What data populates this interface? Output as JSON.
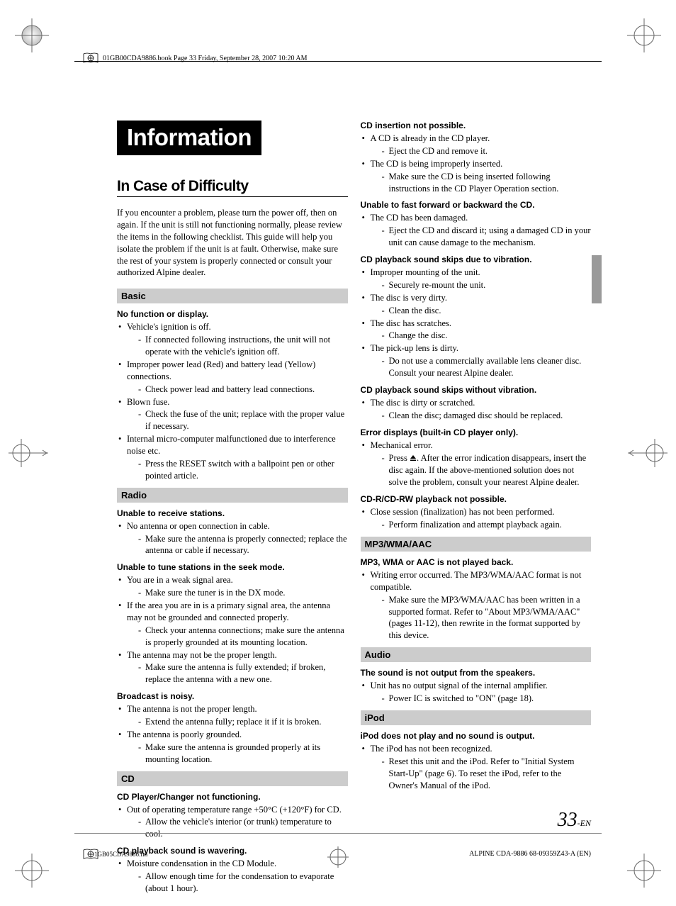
{
  "crop_mark_color": "#5a5a5a",
  "header": {
    "running_head": "01GB00CDA9886.book  Page 33  Friday, September 28, 2007  10:20 AM"
  },
  "title": "Information",
  "subtitle": "In Case of Difficulty",
  "intro": "If you encounter a problem, please turn the power off, then on again. If the unit is still not functioning normally, please review the items in the following checklist. This guide will help you isolate the problem if the unit is at fault. Otherwise, make sure the rest of your system is properly connected or consult your authorized Alpine dealer.",
  "sections_left": [
    {
      "heading": "Basic",
      "problems": [
        {
          "title": "No function or display.",
          "causes": [
            {
              "text": "Vehicle's ignition is off.",
              "solution": "If connected following instructions, the unit will not operate with the vehicle's ignition off."
            },
            {
              "text": "Improper power lead (Red) and battery lead (Yellow) connections.",
              "solution": "Check power lead and battery lead connections."
            },
            {
              "text": "Blown fuse.",
              "solution": "Check the fuse of the unit; replace with the proper value if necessary."
            },
            {
              "text": "Internal micro-computer malfunctioned due to interference noise etc.",
              "solution": "Press the RESET switch with a ballpoint pen or other pointed article."
            }
          ]
        }
      ]
    },
    {
      "heading": "Radio",
      "problems": [
        {
          "title": "Unable to receive stations.",
          "causes": [
            {
              "text": "No antenna or open connection in cable.",
              "solution": "Make sure the antenna is properly connected; replace the antenna or cable if necessary."
            }
          ]
        },
        {
          "title": "Unable to tune stations in the seek mode.",
          "causes": [
            {
              "text": "You are in a weak signal area.",
              "solution": "Make sure the tuner is in the DX mode."
            },
            {
              "text": "If the area you are in is a primary signal area, the antenna may not be grounded and connected properly.",
              "solution": "Check your antenna connections; make sure the antenna is properly grounded at its mounting location."
            },
            {
              "text": "The antenna may not be the proper length.",
              "solution": "Make sure the antenna is fully extended; if broken, replace the antenna with a new one."
            }
          ]
        },
        {
          "title": "Broadcast is noisy.",
          "causes": [
            {
              "text": "The antenna is not the proper length.",
              "solution": "Extend the antenna fully; replace it if it is broken."
            },
            {
              "text": "The antenna is poorly grounded.",
              "solution": "Make sure the antenna is grounded properly at its mounting location."
            }
          ]
        }
      ]
    },
    {
      "heading": "CD",
      "problems": [
        {
          "title": "CD Player/Changer not functioning.",
          "causes": [
            {
              "text": "Out of operating temperature range +50°C (+120°F) for CD.",
              "solution": "Allow the vehicle's interior (or trunk) temperature to cool."
            }
          ]
        },
        {
          "title": "CD playback sound is wavering.",
          "causes": [
            {
              "text": "Moisture condensation in the CD Module.",
              "solution": "Allow enough time for the condensation to evaporate (about 1 hour)."
            }
          ]
        }
      ]
    }
  ],
  "right_problems_before": [
    {
      "title": "CD insertion not possible.",
      "causes": [
        {
          "text": "A CD is already in the CD player.",
          "solution": "Eject the CD and remove it."
        },
        {
          "text": "The CD is being improperly inserted.",
          "solution": "Make sure the CD is being inserted following instructions in the CD Player Operation section."
        }
      ]
    },
    {
      "title": "Unable to fast forward or backward the CD.",
      "causes": [
        {
          "text": "The CD has been damaged.",
          "solution": "Eject the CD and discard it; using a damaged CD in your unit can cause damage to the mechanism."
        }
      ]
    },
    {
      "title": "CD playback sound skips due to vibration.",
      "causes": [
        {
          "text": "Improper mounting of the unit.",
          "solution": "Securely re-mount the unit."
        },
        {
          "text": "The disc is very dirty.",
          "solution": "Clean the disc."
        },
        {
          "text": "The disc has scratches.",
          "solution": "Change the disc."
        },
        {
          "text": "The pick-up lens is dirty.",
          "solution": "Do not use a commercially available lens cleaner disc. Consult your nearest Alpine dealer."
        }
      ]
    },
    {
      "title": "CD playback sound skips without vibration.",
      "causes": [
        {
          "text": "The disc is dirty or scratched.",
          "solution": "Clean the disc; damaged disc should be replaced."
        }
      ]
    },
    {
      "title": "Error displays (built-in CD player only).",
      "causes": [
        {
          "text": "Mechanical error.",
          "eject_icon": true,
          "solution_prefix": "Press ",
          "solution_suffix": ". After the error indication disappears, insert the disc again. If the above-mentioned solution does not solve the problem, consult your nearest Alpine dealer."
        }
      ]
    },
    {
      "title": "CD-R/CD-RW playback not possible.",
      "causes": [
        {
          "text": "Close session (finalization) has not been performed.",
          "solution": "Perform finalization and attempt playback again."
        }
      ]
    }
  ],
  "sections_right": [
    {
      "heading": "MP3/WMA/AAC",
      "problems": [
        {
          "title": "MP3, WMA or AAC is not played back.",
          "causes": [
            {
              "text": "Writing error occurred. The MP3/WMA/AAC format is not compatible.",
              "solution": "Make sure the MP3/WMA/AAC has been written in a supported format. Refer to \"About MP3/WMA/AAC\" (pages 11-12), then rewrite in the format supported by this device."
            }
          ]
        }
      ]
    },
    {
      "heading": "Audio",
      "problems": [
        {
          "title": "The sound is not output from the speakers.",
          "causes": [
            {
              "text": "Unit has no output signal of the internal amplifier.",
              "solution": "Power IC is switched to \"ON\" (page 18)."
            }
          ]
        }
      ]
    },
    {
      "heading": "iPod",
      "problems": [
        {
          "title": "iPod does not play and no sound is output.",
          "causes": [
            {
              "text": "The iPod has not been recognized.",
              "solution": "Reset this unit and the iPod. Refer to \"Initial System Start-Up\" (page 6). To reset the iPod, refer to the Owner's Manual of the iPod."
            }
          ]
        }
      ]
    }
  ],
  "footer": {
    "page_number": "33",
    "page_suffix": "-EN",
    "model_line": "ALPINE CDA-9886 68-09359Z43-A (EN)",
    "file_partial": "1GB05CDA9886.fm"
  }
}
